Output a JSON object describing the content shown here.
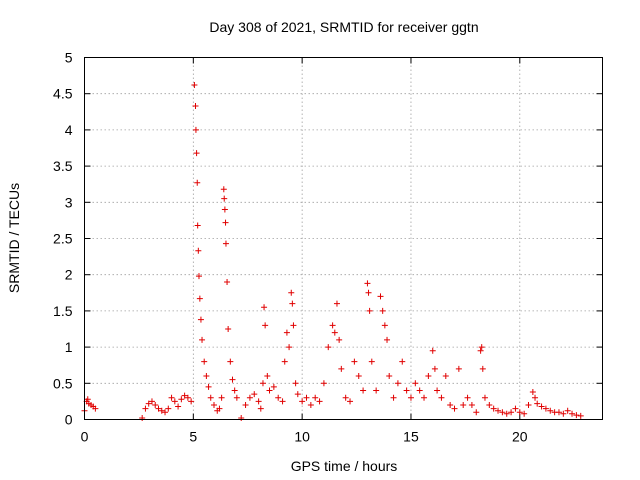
{
  "chart_data": {
    "type": "scatter",
    "title": "Day 308 of 2021, SRMTID for receiver ggtn",
    "xlabel": "GPS time / hours",
    "ylabel": "SRMTID / TECUs",
    "xlim": [
      0,
      23.8
    ],
    "ylim": [
      0,
      5
    ],
    "xticks": [
      0,
      5,
      10,
      15,
      20
    ],
    "xtick_labels": [
      "0",
      "5",
      "10",
      "15",
      "20"
    ],
    "yticks": [
      0,
      0.5,
      1,
      1.5,
      2,
      2.5,
      3,
      3.5,
      4,
      4.5,
      5
    ],
    "ytick_labels": [
      "0",
      "0.5",
      "1",
      "1.5",
      "2",
      "2.5",
      "3",
      "3.5",
      "4",
      "4.5",
      "5"
    ],
    "grid": true,
    "marker": "+",
    "marker_color": "#e00000",
    "series": [
      {
        "name": "SRMTID",
        "x": [
          0.0,
          0.1,
          0.15,
          0.2,
          0.3,
          0.4,
          0.5,
          2.65,
          2.8,
          2.95,
          3.1,
          3.25,
          3.4,
          3.55,
          3.7,
          3.85,
          4.0,
          4.15,
          4.3,
          4.45,
          4.6,
          4.75,
          4.9,
          5.05,
          5.1,
          5.12,
          5.15,
          5.18,
          5.2,
          5.23,
          5.26,
          5.3,
          5.35,
          5.4,
          5.5,
          5.6,
          5.7,
          5.8,
          5.95,
          6.1,
          6.2,
          6.3,
          6.4,
          6.42,
          6.45,
          6.48,
          6.5,
          6.55,
          6.6,
          6.7,
          6.8,
          6.9,
          7.0,
          7.2,
          7.4,
          7.6,
          7.8,
          8.0,
          8.1,
          8.2,
          8.25,
          8.3,
          8.4,
          8.5,
          8.7,
          8.9,
          9.1,
          9.2,
          9.3,
          9.4,
          9.5,
          9.55,
          9.6,
          9.7,
          9.8,
          10.0,
          10.2,
          10.4,
          10.6,
          10.8,
          11.0,
          11.2,
          11.4,
          11.5,
          11.6,
          11.7,
          11.8,
          12.0,
          12.2,
          12.4,
          12.6,
          12.8,
          13.0,
          13.05,
          13.1,
          13.2,
          13.4,
          13.6,
          13.7,
          13.8,
          13.9,
          14.0,
          14.2,
          14.4,
          14.6,
          14.8,
          15.0,
          15.2,
          15.4,
          15.6,
          15.8,
          16.0,
          16.1,
          16.2,
          16.4,
          16.6,
          16.8,
          17.0,
          17.2,
          17.4,
          17.6,
          17.8,
          18.0,
          18.2,
          18.25,
          18.3,
          18.4,
          18.6,
          18.8,
          19.0,
          19.2,
          19.4,
          19.6,
          19.8,
          20.0,
          20.2,
          20.4,
          20.6,
          20.7,
          20.8,
          21.0,
          21.2,
          21.4,
          21.6,
          21.8,
          22.0,
          22.2,
          22.4,
          22.6,
          22.8
        ],
        "y": [
          0.12,
          0.25,
          0.28,
          0.22,
          0.2,
          0.18,
          0.15,
          0.02,
          0.15,
          0.22,
          0.25,
          0.2,
          0.15,
          0.12,
          0.1,
          0.15,
          0.3,
          0.25,
          0.18,
          0.28,
          0.33,
          0.3,
          0.25,
          4.62,
          4.33,
          4.0,
          3.68,
          3.27,
          2.68,
          2.33,
          1.98,
          1.67,
          1.38,
          1.1,
          0.8,
          0.6,
          0.45,
          0.3,
          0.2,
          0.12,
          0.15,
          0.3,
          3.18,
          3.05,
          2.9,
          2.72,
          2.43,
          1.9,
          1.25,
          0.8,
          0.55,
          0.4,
          0.3,
          0.02,
          0.2,
          0.3,
          0.35,
          0.25,
          0.15,
          0.5,
          1.55,
          1.3,
          0.6,
          0.4,
          0.45,
          0.3,
          0.25,
          0.8,
          1.2,
          1.0,
          1.75,
          1.6,
          1.3,
          0.5,
          0.35,
          0.25,
          0.3,
          0.2,
          0.3,
          0.25,
          0.5,
          1.0,
          1.3,
          1.2,
          1.6,
          1.1,
          0.7,
          0.3,
          0.25,
          0.8,
          0.6,
          0.4,
          1.88,
          1.75,
          1.5,
          0.8,
          0.4,
          1.7,
          1.5,
          1.3,
          1.1,
          0.6,
          0.3,
          0.5,
          0.8,
          0.4,
          0.3,
          0.5,
          0.4,
          0.3,
          0.6,
          0.95,
          0.7,
          0.4,
          0.3,
          0.6,
          0.2,
          0.15,
          0.7,
          0.2,
          0.3,
          0.2,
          0.1,
          0.95,
          1.0,
          0.7,
          0.3,
          0.2,
          0.15,
          0.12,
          0.1,
          0.08,
          0.1,
          0.15,
          0.1,
          0.08,
          0.2,
          0.38,
          0.3,
          0.22,
          0.18,
          0.15,
          0.12,
          0.1,
          0.1,
          0.08,
          0.12,
          0.08,
          0.06,
          0.05
        ]
      }
    ]
  }
}
